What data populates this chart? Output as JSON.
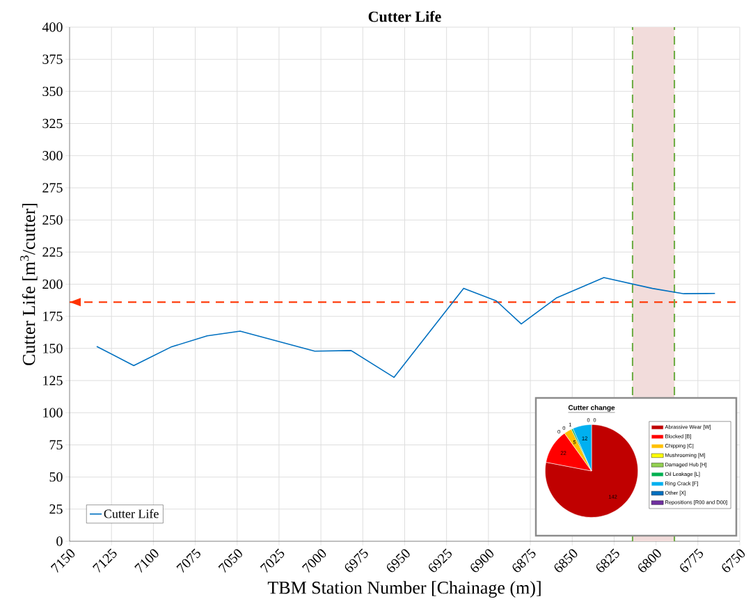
{
  "chart_data": [
    {
      "type": "line",
      "title": "Cutter Life",
      "xlabel": "TBM Station Number [Chainage (m)]",
      "ylabel": "Cutter Life [m$^{3}$/cutter]",
      "x": [
        7133.8,
        7111.7,
        7089.5,
        7067.9,
        7048.2,
        7003.7,
        6982.0,
        6956.4,
        6914.8,
        6895.3,
        6880.4,
        6859.2,
        6831.1,
        6802.1,
        6783.4,
        6764.8
      ],
      "series": [
        {
          "name": "Cutter Life",
          "color": "#0070c0",
          "values": [
            151.6,
            136.7,
            151.1,
            159.8,
            163.5,
            147.9,
            148.4,
            127.5,
            196.8,
            187.0,
            169.1,
            189.5,
            205.1,
            196.7,
            192.6,
            192.8
          ]
        }
      ],
      "xlim": [
        7150,
        6750
      ],
      "xticks": [
        7150,
        7125,
        7100,
        7075,
        7050,
        7025,
        7000,
        6975,
        6950,
        6925,
        6900,
        6875,
        6850,
        6825,
        6800,
        6775,
        6750
      ],
      "ylim": [
        0,
        400
      ],
      "yticks": [
        0,
        25,
        50,
        75,
        100,
        125,
        150,
        175,
        200,
        225,
        250,
        275,
        300,
        325,
        350,
        375,
        400
      ],
      "ref_lines": [
        {
          "axis": "y",
          "value": 186,
          "color": "#ff3300",
          "line_style": "dashed"
        },
        {
          "axis": "x",
          "value": 6814,
          "color": "#70ad47",
          "line_style": "dashed"
        },
        {
          "axis": "x",
          "value": 6789,
          "color": "#70ad47",
          "line_style": "dashed"
        }
      ],
      "bands": [
        {
          "axis": "x",
          "from": 6814,
          "to": 6789,
          "color": "#f2dcdb"
        }
      ],
      "grid": true,
      "legend": "bottom left",
      "marker": "none",
      "line_style": "solid"
    },
    {
      "type": "pie",
      "title": "Cutter change",
      "categories": [
        "Abrassive Wear [W]",
        "Blocked [B]",
        "Chipping [C]",
        "Mushrooming [M]",
        "Damaged Hub [H]",
        "Oil Leakage [L]",
        "Ring Crack [F]",
        "Other [X]",
        "Repositions [R00 and D00]"
      ],
      "values": [
        142,
        22,
        5,
        0,
        0,
        1,
        12,
        0,
        0
      ],
      "colors": [
        "#c00000",
        "#ff0000",
        "#ffc000",
        "#ffff00",
        "#92d050",
        "#00b050",
        "#00b0f0",
        "#0070c0",
        "#7030a0"
      ],
      "value_labels": [
        "142",
        "22",
        "5",
        "0",
        "0",
        "1",
        "12",
        "0",
        "0"
      ],
      "legend": "right"
    }
  ]
}
